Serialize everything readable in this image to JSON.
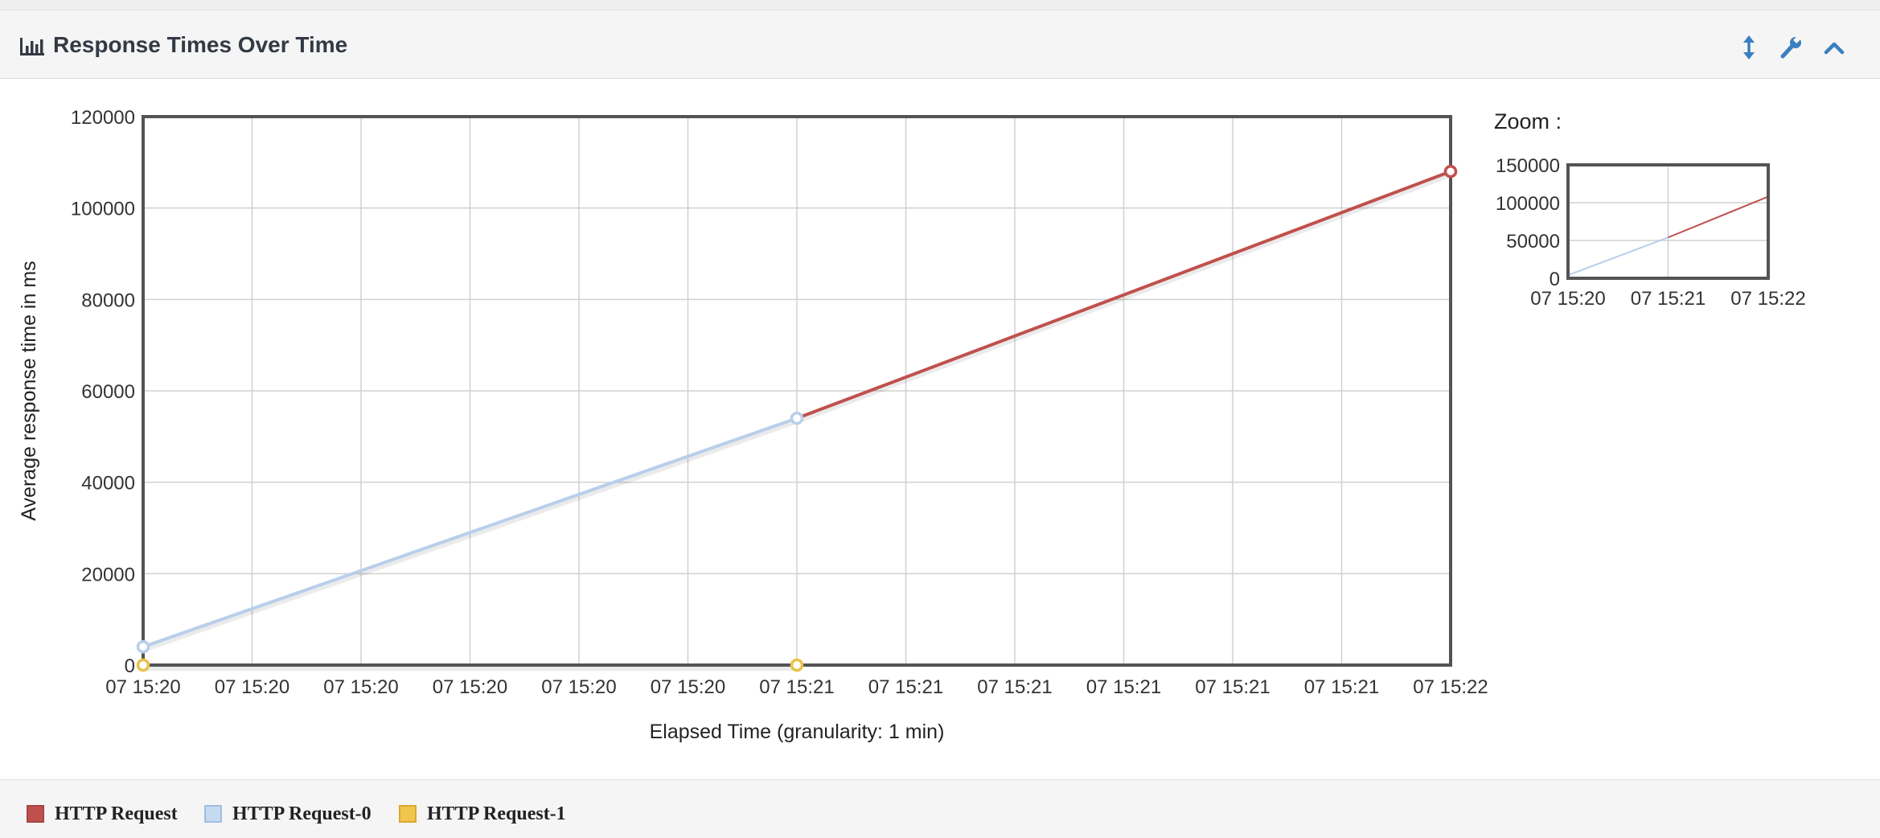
{
  "panel": {
    "title": "Response Times Over Time",
    "title_icon": "bar-chart-icon",
    "buttons": [
      {
        "name": "resize-vertical-icon"
      },
      {
        "name": "wrench-icon"
      },
      {
        "name": "chevron-up-icon"
      }
    ]
  },
  "zoom": {
    "label": "Zoom :"
  },
  "legend": {
    "items": [
      {
        "label": "HTTP Request",
        "color": "#c0504d",
        "border": "#a94442"
      },
      {
        "label": "HTTP Request-0",
        "color": "#c5daf1",
        "border": "#9fbfe0"
      },
      {
        "label": "HTTP Request-1",
        "color": "#f0c64f",
        "border": "#d9a92a"
      }
    ]
  },
  "chart_data": {
    "type": "line",
    "xlabel": "Elapsed Time (granularity: 1 min)",
    "ylabel": "Average response time in ms",
    "ylim": [
      0,
      120000
    ],
    "xlim": [
      0,
      120
    ],
    "yticks": [
      0,
      20000,
      40000,
      60000,
      80000,
      100000,
      120000
    ],
    "xticks": [
      {
        "v": 0,
        "label": "07 15:20"
      },
      {
        "v": 10,
        "label": "07 15:20"
      },
      {
        "v": 20,
        "label": "07 15:20"
      },
      {
        "v": 30,
        "label": "07 15:20"
      },
      {
        "v": 40,
        "label": "07 15:20"
      },
      {
        "v": 50,
        "label": "07 15:20"
      },
      {
        "v": 60,
        "label": "07 15:21"
      },
      {
        "v": 70,
        "label": "07 15:21"
      },
      {
        "v": 80,
        "label": "07 15:21"
      },
      {
        "v": 90,
        "label": "07 15:21"
      },
      {
        "v": 100,
        "label": "07 15:21"
      },
      {
        "v": 110,
        "label": "07 15:21"
      },
      {
        "v": 120,
        "label": "07 15:22"
      }
    ],
    "grid": true,
    "series": [
      {
        "name": "HTTP Request",
        "color": "#c0504d",
        "points": [
          [
            60,
            54000
          ],
          [
            120,
            108000
          ]
        ]
      },
      {
        "name": "HTTP Request-0",
        "color": "#b8cfeb",
        "points": [
          [
            0,
            4000
          ],
          [
            60,
            54000
          ]
        ]
      },
      {
        "name": "HTTP Request-1",
        "color": "#e9c24a",
        "points": [
          [
            0,
            0
          ],
          [
            60,
            0
          ]
        ]
      }
    ],
    "zoom": {
      "ylim": [
        0,
        150000
      ],
      "yticks": [
        0,
        50000,
        100000,
        150000
      ],
      "xticks": [
        {
          "v": 0,
          "label": "07 15:20"
        },
        {
          "v": 60,
          "label": "07 15:21"
        },
        {
          "v": 120,
          "label": "07 15:22"
        }
      ]
    }
  }
}
